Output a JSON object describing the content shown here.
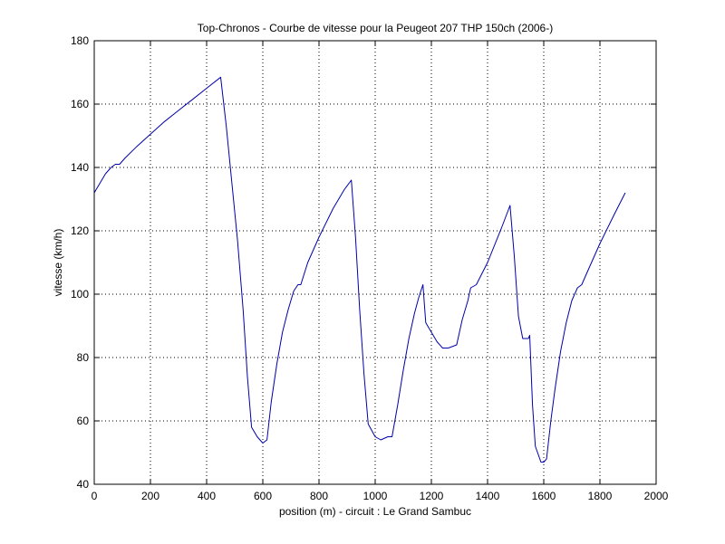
{
  "chart_data": {
    "type": "line",
    "title": "Top-Chronos - Courbe de vitesse pour la Peugeot 207 THP 150ch (2006-)",
    "xlabel": "position (m) - circuit : Le Grand Sambuc",
    "ylabel": "vitesse (km/h)",
    "xlim": [
      0,
      2000
    ],
    "ylim": [
      40,
      180
    ],
    "xticks": [
      0,
      200,
      400,
      600,
      800,
      1000,
      1200,
      1400,
      1600,
      1800,
      2000
    ],
    "yticks": [
      40,
      60,
      80,
      100,
      120,
      140,
      160,
      180
    ],
    "grid": true,
    "grid_style": "dotted",
    "line_color": "#0000aa",
    "series": [
      {
        "x": [
          0,
          20,
          40,
          60,
          75,
          90,
          110,
          150,
          200,
          250,
          300,
          350,
          400,
          450,
          470,
          490,
          510,
          530,
          545,
          560,
          580,
          600,
          615,
          630,
          650,
          670,
          690,
          710,
          725,
          735,
          760,
          800,
          850,
          890,
          915,
          930,
          945,
          960,
          975,
          1000,
          1020,
          1045,
          1060,
          1080,
          1100,
          1120,
          1140,
          1155,
          1170,
          1180,
          1200,
          1220,
          1240,
          1260,
          1290,
          1310,
          1330,
          1340,
          1360,
          1400,
          1450,
          1480,
          1495,
          1510,
          1525,
          1545,
          1550,
          1560,
          1570,
          1590,
          1600,
          1610,
          1625,
          1640,
          1660,
          1680,
          1700,
          1720,
          1735,
          1750,
          1800,
          1850,
          1890
        ],
        "y": [
          132,
          135,
          138,
          140,
          141,
          141,
          143,
          146.5,
          150.5,
          154.5,
          158,
          161.5,
          165,
          168.5,
          153,
          135,
          117,
          95,
          74,
          58,
          55,
          53,
          54,
          66,
          78,
          88,
          95,
          101,
          103,
          103,
          110,
          118,
          127,
          133,
          136,
          118,
          95,
          75,
          59,
          55,
          54,
          55,
          55,
          65,
          76,
          86,
          94,
          99,
          103,
          91,
          88,
          85,
          83,
          83,
          84,
          92,
          98,
          102,
          103,
          110,
          121,
          128,
          112,
          93,
          86,
          86,
          87,
          65,
          52,
          47,
          47,
          48,
          60,
          70,
          82,
          91,
          98,
          102,
          103,
          106,
          116,
          125,
          132
        ]
      }
    ]
  }
}
